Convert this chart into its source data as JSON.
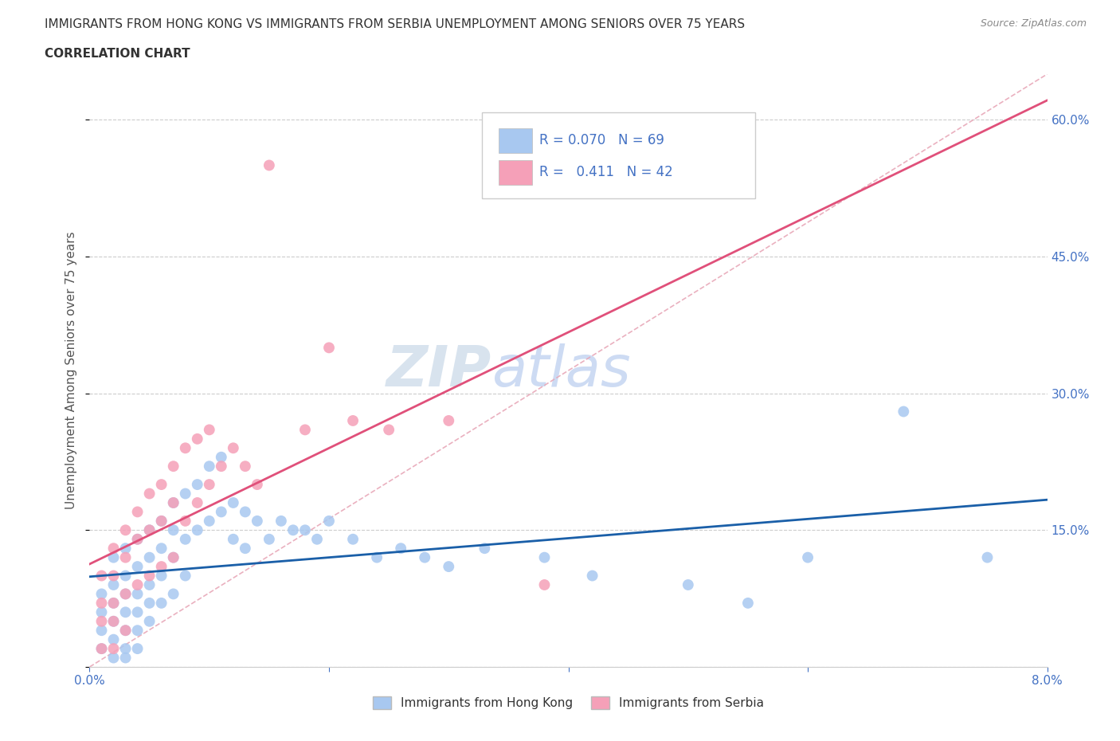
{
  "title_line1": "IMMIGRANTS FROM HONG KONG VS IMMIGRANTS FROM SERBIA UNEMPLOYMENT AMONG SENIORS OVER 75 YEARS",
  "title_line2": "CORRELATION CHART",
  "source_text": "Source: ZipAtlas.com",
  "ylabel": "Unemployment Among Seniors over 75 years",
  "xlim": [
    0.0,
    0.08
  ],
  "ylim": [
    0.0,
    0.65
  ],
  "xticks": [
    0.0,
    0.02,
    0.04,
    0.06,
    0.08
  ],
  "xtick_labels": [
    "0.0%",
    "",
    "",
    "",
    "8.0%"
  ],
  "ytick_labels_right": [
    "",
    "15.0%",
    "30.0%",
    "45.0%",
    "60.0%"
  ],
  "yticks": [
    0.0,
    0.15,
    0.3,
    0.45,
    0.6
  ],
  "r_hk": 0.07,
  "n_hk": 69,
  "r_serbia": 0.411,
  "n_serbia": 42,
  "hk_color": "#a8c8f0",
  "serbia_color": "#f5a0b8",
  "hk_line_color": "#1a5fa8",
  "serbia_line_color": "#e0507a",
  "diagonal_color": "#e8a8b8",
  "title_color": "#333333",
  "axis_color": "#4472c4",
  "watermark_color": "#dde8f5",
  "legend_text_color": "#4472c4",
  "hk_scatter_x": [
    0.001,
    0.001,
    0.001,
    0.001,
    0.002,
    0.002,
    0.002,
    0.002,
    0.002,
    0.002,
    0.003,
    0.003,
    0.003,
    0.003,
    0.003,
    0.003,
    0.003,
    0.004,
    0.004,
    0.004,
    0.004,
    0.004,
    0.004,
    0.005,
    0.005,
    0.005,
    0.005,
    0.005,
    0.006,
    0.006,
    0.006,
    0.006,
    0.007,
    0.007,
    0.007,
    0.007,
    0.008,
    0.008,
    0.008,
    0.009,
    0.009,
    0.01,
    0.01,
    0.011,
    0.011,
    0.012,
    0.012,
    0.013,
    0.013,
    0.014,
    0.015,
    0.016,
    0.017,
    0.018,
    0.019,
    0.02,
    0.022,
    0.024,
    0.026,
    0.028,
    0.03,
    0.033,
    0.038,
    0.042,
    0.05,
    0.055,
    0.06,
    0.068,
    0.075
  ],
  "hk_scatter_y": [
    0.08,
    0.06,
    0.04,
    0.02,
    0.12,
    0.09,
    0.07,
    0.05,
    0.03,
    0.01,
    0.13,
    0.1,
    0.08,
    0.06,
    0.04,
    0.02,
    0.01,
    0.14,
    0.11,
    0.08,
    0.06,
    0.04,
    0.02,
    0.15,
    0.12,
    0.09,
    0.07,
    0.05,
    0.16,
    0.13,
    0.1,
    0.07,
    0.18,
    0.15,
    0.12,
    0.08,
    0.19,
    0.14,
    0.1,
    0.2,
    0.15,
    0.22,
    0.16,
    0.23,
    0.17,
    0.18,
    0.14,
    0.17,
    0.13,
    0.16,
    0.14,
    0.16,
    0.15,
    0.15,
    0.14,
    0.16,
    0.14,
    0.12,
    0.13,
    0.12,
    0.11,
    0.13,
    0.12,
    0.1,
    0.09,
    0.07,
    0.12,
    0.28,
    0.12
  ],
  "serbia_scatter_x": [
    0.001,
    0.001,
    0.001,
    0.001,
    0.002,
    0.002,
    0.002,
    0.002,
    0.002,
    0.003,
    0.003,
    0.003,
    0.003,
    0.004,
    0.004,
    0.004,
    0.005,
    0.005,
    0.005,
    0.006,
    0.006,
    0.006,
    0.007,
    0.007,
    0.007,
    0.008,
    0.008,
    0.009,
    0.009,
    0.01,
    0.01,
    0.011,
    0.012,
    0.013,
    0.014,
    0.015,
    0.018,
    0.02,
    0.022,
    0.025,
    0.03,
    0.038
  ],
  "serbia_scatter_y": [
    0.1,
    0.07,
    0.05,
    0.02,
    0.13,
    0.1,
    0.07,
    0.05,
    0.02,
    0.15,
    0.12,
    0.08,
    0.04,
    0.17,
    0.14,
    0.09,
    0.19,
    0.15,
    0.1,
    0.2,
    0.16,
    0.11,
    0.22,
    0.18,
    0.12,
    0.24,
    0.16,
    0.25,
    0.18,
    0.26,
    0.2,
    0.22,
    0.24,
    0.22,
    0.2,
    0.55,
    0.26,
    0.35,
    0.27,
    0.26,
    0.27,
    0.09
  ],
  "hk_trend": [
    0.0,
    0.08,
    0.085,
    0.115
  ],
  "serbia_trend_x": [
    0.0,
    0.04
  ],
  "serbia_trend_y": [
    0.03,
    0.4
  ]
}
